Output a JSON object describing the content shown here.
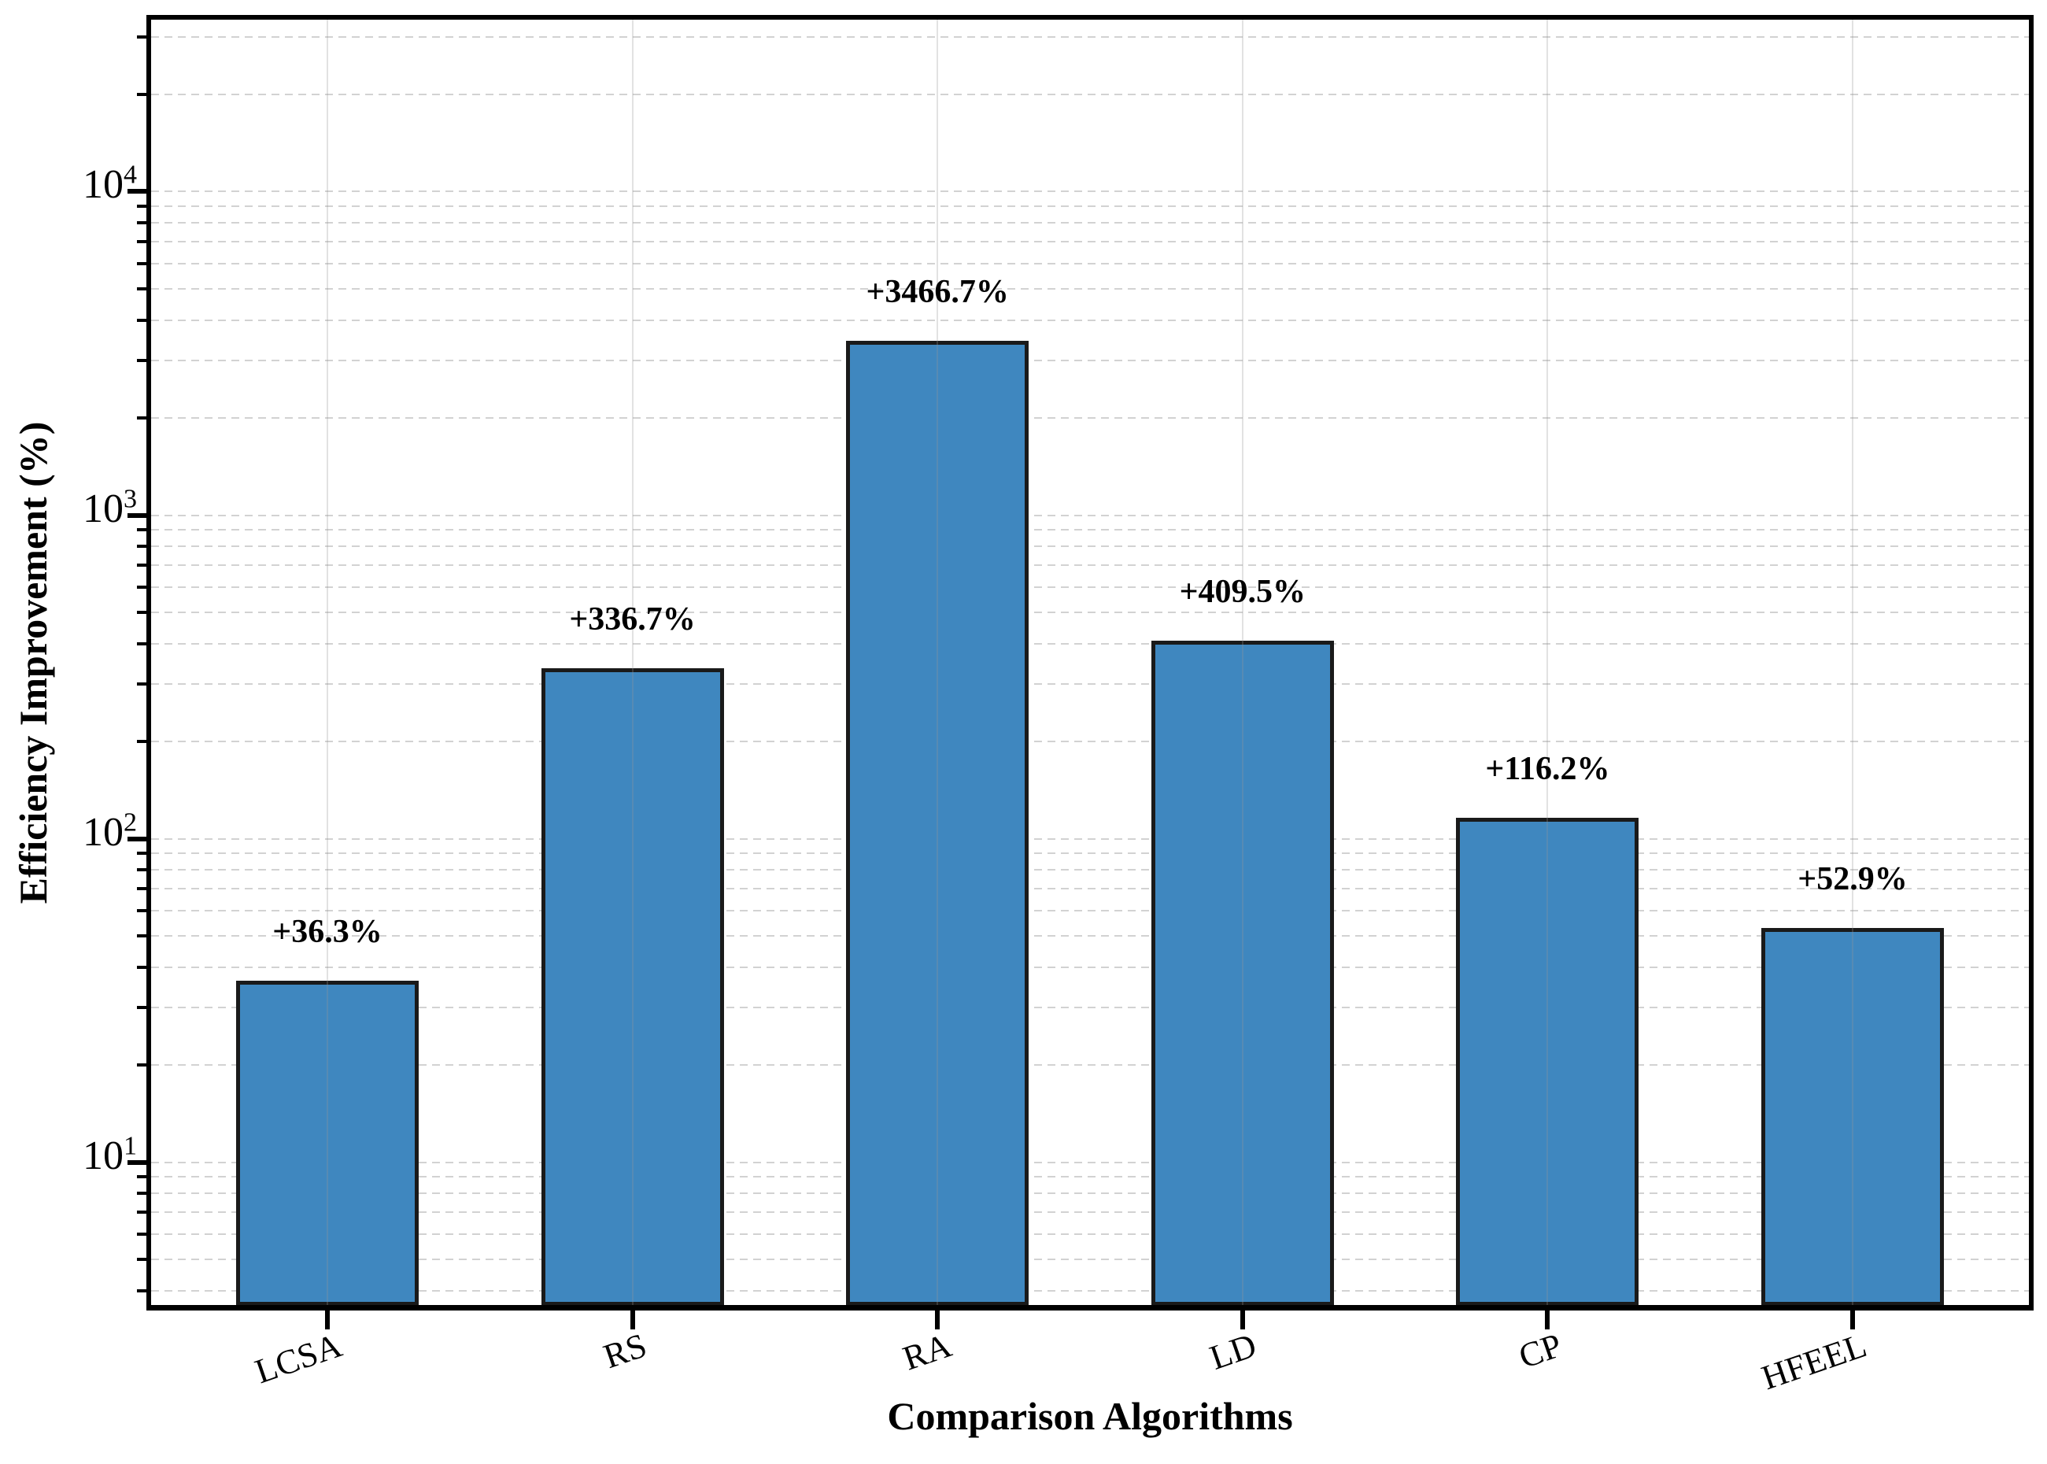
{
  "figure": {
    "background": "#ffffff"
  },
  "chart_data": {
    "type": "bar",
    "categories": [
      "LCSA",
      "RS",
      "RA",
      "LD",
      "CP",
      "HFEEL"
    ],
    "values": [
      36.3,
      336.7,
      3466.7,
      409.5,
      116.2,
      52.9
    ],
    "bar_labels": [
      "+36.3%",
      "+336.7%",
      "+3466.7%",
      "+409.5%",
      "+116.2%",
      "+52.9%"
    ],
    "title": "",
    "xlabel": "Comparison Algorithms",
    "ylabel": "Efficiency Improvement (%)",
    "yscale": "log",
    "ylim": [
      3.6,
      34000
    ],
    "y_tick_exponents": [
      1,
      2,
      3,
      4
    ],
    "y_tick_labels": [
      "10^1",
      "10^2",
      "10^3",
      "10^4"
    ],
    "legend": "none",
    "grid": {
      "horizontal_style": "dashed",
      "horizontal_at": "major-and-minor-log-ticks",
      "vertical_style": "solid",
      "vertical_at": "category-centers"
    },
    "colors": {
      "bar_fill": "#3f87bf",
      "bar_edge": "#1a1a1a",
      "grid_horizontal": "#cdcdcd",
      "grid_vertical": "#969696",
      "axis_spine": "#000000",
      "text": "#000000"
    }
  }
}
